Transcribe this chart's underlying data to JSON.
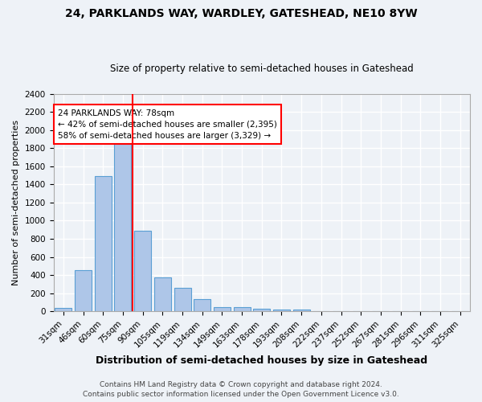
{
  "title1": "24, PARKLANDS WAY, WARDLEY, GATESHEAD, NE10 8YW",
  "title2": "Size of property relative to semi-detached houses in Gateshead",
  "xlabel": "Distribution of semi-detached houses by size in Gateshead",
  "ylabel": "Number of semi-detached properties",
  "categories": [
    "31sqm",
    "46sqm",
    "60sqm",
    "75sqm",
    "90sqm",
    "105sqm",
    "119sqm",
    "134sqm",
    "149sqm",
    "163sqm",
    "178sqm",
    "193sqm",
    "208sqm",
    "222sqm",
    "237sqm",
    "252sqm",
    "267sqm",
    "281sqm",
    "296sqm",
    "311sqm",
    "325sqm"
  ],
  "values": [
    40,
    450,
    1490,
    2020,
    890,
    375,
    255,
    135,
    45,
    45,
    25,
    18,
    15,
    0,
    0,
    0,
    0,
    0,
    0,
    0,
    0
  ],
  "bar_color": "#aec6e8",
  "bar_edge_color": "#5a9fd4",
  "vline_x_index": 3,
  "vline_color": "red",
  "annotation_text": "24 PARKLANDS WAY: 78sqm\n← 42% of semi-detached houses are smaller (2,395)\n58% of semi-detached houses are larger (3,329) →",
  "annotation_box_color": "white",
  "annotation_box_edge": "red",
  "footer1": "Contains HM Land Registry data © Crown copyright and database right 2024.",
  "footer2": "Contains public sector information licensed under the Open Government Licence v3.0.",
  "ylim": [
    0,
    2400
  ],
  "yticks": [
    0,
    200,
    400,
    600,
    800,
    1000,
    1200,
    1400,
    1600,
    1800,
    2000,
    2200,
    2400
  ],
  "background_color": "#eef2f7",
  "grid_color": "white",
  "title1_fontsize": 10,
  "title2_fontsize": 8.5,
  "ylabel_fontsize": 8,
  "xlabel_fontsize": 9,
  "tick_fontsize": 7.5,
  "footer_fontsize": 6.5
}
